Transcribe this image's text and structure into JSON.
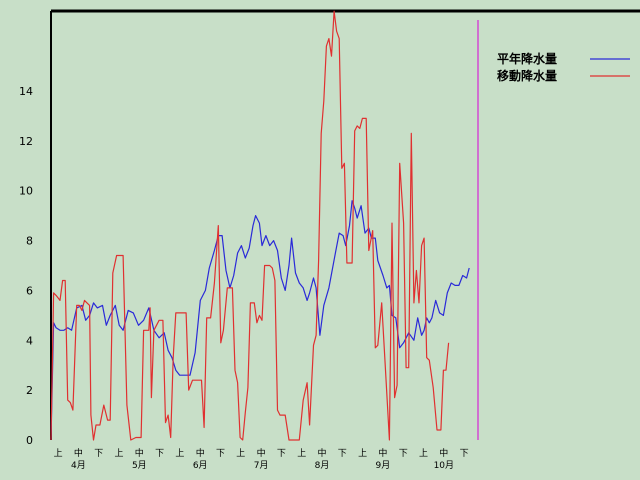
{
  "chart_data": {
    "type": "line",
    "ylim": [
      0,
      16
    ],
    "y_ticks": [
      0,
      2,
      4,
      6,
      8,
      10,
      12,
      14
    ],
    "grid": false,
    "legend_position": "top-right",
    "dekad_labels": [
      "上",
      "中",
      "下",
      "上",
      "中",
      "下",
      "上",
      "中",
      "下",
      "上",
      "中",
      "下",
      "上",
      "中",
      "下",
      "上",
      "中",
      "下",
      "上",
      "中",
      "下"
    ],
    "month_labels": [
      "4月",
      "5月",
      "6月",
      "7月",
      "8月",
      "9月",
      "10月"
    ],
    "x_start_dekad": 0.5,
    "x_end_dekad": 21.2,
    "current_marker_dekad": 21.1,
    "colors": {
      "background": "#c8dfc8",
      "normal": "#2a2ad8",
      "moving": "#e03030",
      "marker": "#d070d0",
      "frame": "#000000"
    },
    "series": [
      {
        "name": "平年降水量",
        "color": "#2a2ad8",
        "points": [
          [
            0.5,
            0
          ],
          [
            0.6,
            4.7
          ],
          [
            0.7,
            4.5
          ],
          [
            0.85,
            4.4
          ],
          [
            1.0,
            4.4
          ],
          [
            1.15,
            4.5
          ],
          [
            1.3,
            4.4
          ],
          [
            1.5,
            5.3
          ],
          [
            1.7,
            5.4
          ],
          [
            1.85,
            4.8
          ],
          [
            2.0,
            5.0
          ],
          [
            2.15,
            5.5
          ],
          [
            2.3,
            5.3
          ],
          [
            2.5,
            5.4
          ],
          [
            2.65,
            4.6
          ],
          [
            2.8,
            5.0
          ],
          [
            3.0,
            5.4
          ],
          [
            3.15,
            4.6
          ],
          [
            3.3,
            4.4
          ],
          [
            3.5,
            5.2
          ],
          [
            3.7,
            5.1
          ],
          [
            3.9,
            4.6
          ],
          [
            4.1,
            4.8
          ],
          [
            4.3,
            5.3
          ],
          [
            4.5,
            4.4
          ],
          [
            4.7,
            4.1
          ],
          [
            4.9,
            4.3
          ],
          [
            5.05,
            3.6
          ],
          [
            5.2,
            3.3
          ],
          [
            5.35,
            2.8
          ],
          [
            5.5,
            2.6
          ],
          [
            5.7,
            2.6
          ],
          [
            5.9,
            2.6
          ],
          [
            6.1,
            3.5
          ],
          [
            6.3,
            5.6
          ],
          [
            6.5,
            6.0
          ],
          [
            6.65,
            6.9
          ],
          [
            6.85,
            7.6
          ],
          [
            7.0,
            8.2
          ],
          [
            7.15,
            8.2
          ],
          [
            7.3,
            6.8
          ],
          [
            7.45,
            6.1
          ],
          [
            7.6,
            6.6
          ],
          [
            7.75,
            7.5
          ],
          [
            7.9,
            7.8
          ],
          [
            8.05,
            7.3
          ],
          [
            8.2,
            7.7
          ],
          [
            8.35,
            8.6
          ],
          [
            8.45,
            9.0
          ],
          [
            8.6,
            8.7
          ],
          [
            8.7,
            7.8
          ],
          [
            8.85,
            8.2
          ],
          [
            9.0,
            7.8
          ],
          [
            9.15,
            8.0
          ],
          [
            9.3,
            7.6
          ],
          [
            9.45,
            6.5
          ],
          [
            9.6,
            6.0
          ],
          [
            9.75,
            7.0
          ],
          [
            9.85,
            8.1
          ],
          [
            10.0,
            6.7
          ],
          [
            10.15,
            6.3
          ],
          [
            10.3,
            6.1
          ],
          [
            10.45,
            5.6
          ],
          [
            10.55,
            5.9
          ],
          [
            10.7,
            6.5
          ],
          [
            10.8,
            6.1
          ],
          [
            10.95,
            4.2
          ],
          [
            11.1,
            5.4
          ],
          [
            11.3,
            6.1
          ],
          [
            11.55,
            7.5
          ],
          [
            11.7,
            8.3
          ],
          [
            11.85,
            8.2
          ],
          [
            11.95,
            7.8
          ],
          [
            12.1,
            8.6
          ],
          [
            12.2,
            9.6
          ],
          [
            12.3,
            9.3
          ],
          [
            12.4,
            8.9
          ],
          [
            12.55,
            9.4
          ],
          [
            12.7,
            8.3
          ],
          [
            12.85,
            8.5
          ],
          [
            12.95,
            8.1
          ],
          [
            13.1,
            8.1
          ],
          [
            13.2,
            7.2
          ],
          [
            13.4,
            6.6
          ],
          [
            13.55,
            6.1
          ],
          [
            13.65,
            6.2
          ],
          [
            13.75,
            5.0
          ],
          [
            13.9,
            4.9
          ],
          [
            14.05,
            3.7
          ],
          [
            14.2,
            3.9
          ],
          [
            14.4,
            4.3
          ],
          [
            14.6,
            4.0
          ],
          [
            14.75,
            4.9
          ],
          [
            14.9,
            4.2
          ],
          [
            15.0,
            4.4
          ],
          [
            15.1,
            4.9
          ],
          [
            15.2,
            4.7
          ],
          [
            15.3,
            4.9
          ],
          [
            15.45,
            5.6
          ],
          [
            15.6,
            5.1
          ],
          [
            15.75,
            5.0
          ],
          [
            15.9,
            5.9
          ],
          [
            16.05,
            6.3
          ],
          [
            16.2,
            6.2
          ],
          [
            16.35,
            6.2
          ],
          [
            16.5,
            6.6
          ],
          [
            16.65,
            6.5
          ],
          [
            16.75,
            6.9
          ]
        ]
      },
      {
        "name": "移動降水量",
        "color": "#e03030",
        "points": [
          [
            0.5,
            0
          ],
          [
            0.6,
            5.9
          ],
          [
            0.7,
            5.8
          ],
          [
            0.85,
            5.6
          ],
          [
            0.95,
            6.4
          ],
          [
            1.05,
            6.4
          ],
          [
            1.15,
            1.6
          ],
          [
            1.25,
            1.5
          ],
          [
            1.35,
            1.2
          ],
          [
            1.5,
            5.4
          ],
          [
            1.6,
            5.4
          ],
          [
            1.7,
            5.2
          ],
          [
            1.8,
            5.6
          ],
          [
            1.9,
            5.5
          ],
          [
            2.0,
            5.4
          ],
          [
            2.05,
            1.0
          ],
          [
            2.15,
            0
          ],
          [
            2.25,
            0.6
          ],
          [
            2.4,
            0.6
          ],
          [
            2.55,
            1.4
          ],
          [
            2.7,
            0.8
          ],
          [
            2.8,
            0.8
          ],
          [
            2.9,
            6.7
          ],
          [
            3.05,
            7.4
          ],
          [
            3.3,
            7.4
          ],
          [
            3.45,
            1.4
          ],
          [
            3.6,
            0
          ],
          [
            3.8,
            0.1
          ],
          [
            4.0,
            0.1
          ],
          [
            4.1,
            4.4
          ],
          [
            4.3,
            4.4
          ],
          [
            4.35,
            5.3
          ],
          [
            4.4,
            1.7
          ],
          [
            4.5,
            4.4
          ],
          [
            4.7,
            4.8
          ],
          [
            4.85,
            4.8
          ],
          [
            4.95,
            0.7
          ],
          [
            5.05,
            1.0
          ],
          [
            5.15,
            0.1
          ],
          [
            5.25,
            3.3
          ],
          [
            5.35,
            5.1
          ],
          [
            5.55,
            5.1
          ],
          [
            5.75,
            5.1
          ],
          [
            5.85,
            2.0
          ],
          [
            6.0,
            2.4
          ],
          [
            6.2,
            2.4
          ],
          [
            6.35,
            2.4
          ],
          [
            6.45,
            0.5
          ],
          [
            6.55,
            4.9
          ],
          [
            6.7,
            4.9
          ],
          [
            6.85,
            6.3
          ],
          [
            7.0,
            8.6
          ],
          [
            7.1,
            3.9
          ],
          [
            7.2,
            4.4
          ],
          [
            7.35,
            6.1
          ],
          [
            7.55,
            6.1
          ],
          [
            7.65,
            2.8
          ],
          [
            7.75,
            2.3
          ],
          [
            7.85,
            0.1
          ],
          [
            7.95,
            0
          ],
          [
            8.05,
            1.1
          ],
          [
            8.15,
            2.1
          ],
          [
            8.25,
            5.5
          ],
          [
            8.4,
            5.5
          ],
          [
            8.5,
            4.7
          ],
          [
            8.6,
            5.0
          ],
          [
            8.7,
            4.8
          ],
          [
            8.8,
            7.0
          ],
          [
            9.0,
            7.0
          ],
          [
            9.1,
            6.9
          ],
          [
            9.2,
            6.4
          ],
          [
            9.3,
            1.2
          ],
          [
            9.4,
            1.0
          ],
          [
            9.6,
            1.0
          ],
          [
            9.75,
            0
          ],
          [
            10.0,
            0
          ],
          [
            10.15,
            0
          ],
          [
            10.3,
            1.6
          ],
          [
            10.45,
            2.3
          ],
          [
            10.55,
            0.6
          ],
          [
            10.7,
            3.8
          ],
          [
            10.8,
            4.2
          ],
          [
            10.9,
            7.2
          ],
          [
            11.0,
            12.3
          ],
          [
            11.1,
            13.6
          ],
          [
            11.2,
            15.8
          ],
          [
            11.3,
            16.1
          ],
          [
            11.4,
            15.4
          ],
          [
            11.5,
            17.2
          ],
          [
            11.6,
            16.4
          ],
          [
            11.7,
            16.1
          ],
          [
            11.8,
            10.9
          ],
          [
            11.9,
            11.1
          ],
          [
            12.0,
            7.1
          ],
          [
            12.1,
            7.1
          ],
          [
            12.2,
            7.1
          ],
          [
            12.3,
            12.4
          ],
          [
            12.4,
            12.6
          ],
          [
            12.5,
            12.5
          ],
          [
            12.6,
            12.9
          ],
          [
            12.75,
            12.9
          ],
          [
            12.85,
            7.6
          ],
          [
            13.0,
            8.4
          ],
          [
            13.1,
            3.7
          ],
          [
            13.2,
            3.8
          ],
          [
            13.35,
            5.5
          ],
          [
            13.5,
            2.8
          ],
          [
            13.65,
            0
          ],
          [
            13.75,
            8.7
          ],
          [
            13.85,
            1.7
          ],
          [
            13.95,
            2.2
          ],
          [
            14.05,
            11.1
          ],
          [
            14.2,
            8.7
          ],
          [
            14.3,
            2.9
          ],
          [
            14.4,
            2.9
          ],
          [
            14.5,
            12.3
          ],
          [
            14.6,
            5.5
          ],
          [
            14.7,
            6.8
          ],
          [
            14.8,
            5.5
          ],
          [
            14.9,
            7.8
          ],
          [
            15.0,
            8.1
          ],
          [
            15.1,
            3.3
          ],
          [
            15.2,
            3.2
          ],
          [
            15.35,
            2.1
          ],
          [
            15.5,
            0.4
          ],
          [
            15.65,
            0.4
          ],
          [
            15.75,
            2.8
          ],
          [
            15.85,
            2.8
          ],
          [
            15.95,
            3.9
          ]
        ]
      }
    ]
  }
}
